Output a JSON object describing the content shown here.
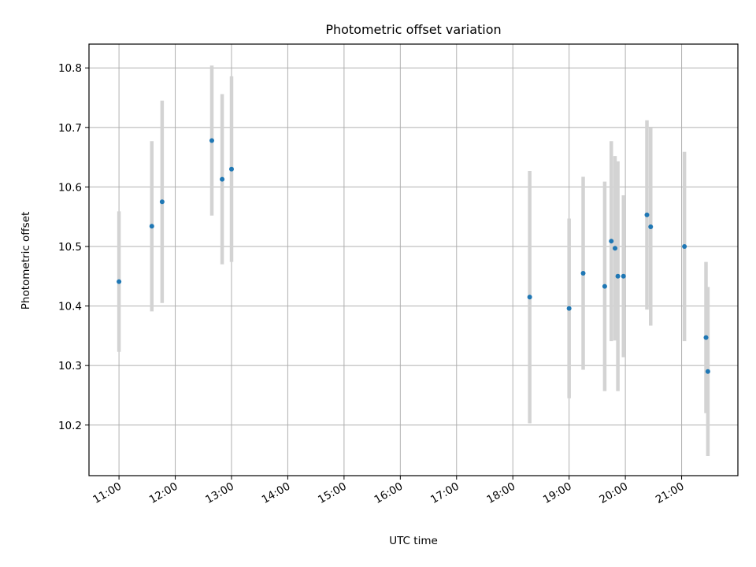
{
  "chart_data": {
    "type": "scatter",
    "title": "Photometric offset variation",
    "xlabel": "UTC time",
    "ylabel": "Photometric offset",
    "x_axis": "time-of-day (UTC)",
    "xlim": [
      "10:28",
      "22:00"
    ],
    "ylim": [
      10.115,
      10.84
    ],
    "grid": true,
    "x_ticks": [
      "11:00",
      "12:00",
      "13:00",
      "14:00",
      "15:00",
      "16:00",
      "17:00",
      "18:00",
      "19:00",
      "20:00",
      "21:00"
    ],
    "y_ticks": [
      "10.2",
      "10.3",
      "10.4",
      "10.5",
      "10.6",
      "10.7",
      "10.8"
    ],
    "point_color": "#1f77b4",
    "errorbar_color": "#d3d3d3",
    "points": [
      {
        "t": "11:00",
        "y": 10.441,
        "err": 0.118
      },
      {
        "t": "11:35",
        "y": 10.534,
        "err": 0.143
      },
      {
        "t": "11:46",
        "y": 10.575,
        "err": 0.17
      },
      {
        "t": "12:39",
        "y": 10.678,
        "err": 0.126
      },
      {
        "t": "12:50",
        "y": 10.613,
        "err": 0.143
      },
      {
        "t": "13:00",
        "y": 10.63,
        "err": 0.156
      },
      {
        "t": "18:18",
        "y": 10.415,
        "err": 0.212
      },
      {
        "t": "19:00",
        "y": 10.396,
        "err": 0.151
      },
      {
        "t": "19:15",
        "y": 10.455,
        "err": 0.162
      },
      {
        "t": "19:38",
        "y": 10.433,
        "err": 0.176
      },
      {
        "t": "19:45",
        "y": 10.509,
        "err": 0.168
      },
      {
        "t": "19:49",
        "y": 10.497,
        "err": 0.155
      },
      {
        "t": "19:52",
        "y": 10.45,
        "err": 0.193
      },
      {
        "t": "19:58",
        "y": 10.45,
        "err": 0.136
      },
      {
        "t": "20:23",
        "y": 10.553,
        "err": 0.159
      },
      {
        "t": "20:27",
        "y": 10.533,
        "err": 0.166
      },
      {
        "t": "21:03",
        "y": 10.5,
        "err": 0.159
      },
      {
        "t": "21:26",
        "y": 10.347,
        "err": 0.127
      },
      {
        "t": "21:28",
        "y": 10.29,
        "err": 0.142
      }
    ]
  }
}
